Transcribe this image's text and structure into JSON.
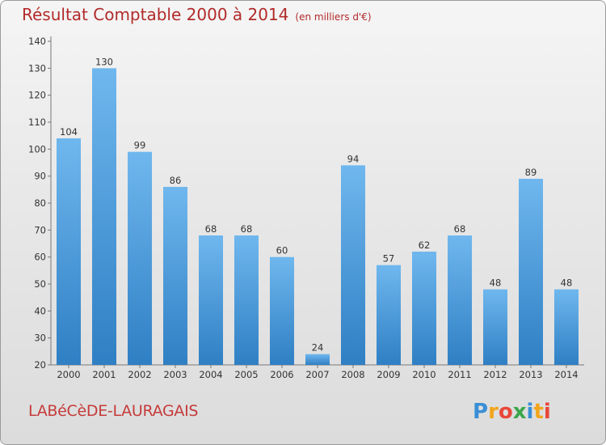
{
  "header": {
    "title": "Résultat Comptable 2000 à 2014",
    "subtitle": "(en milliers d'€)"
  },
  "footer": {
    "commune": "LABéCèDE-LAURAGAIS",
    "logo_text": "Proxiti"
  },
  "colors": {
    "bar": "#3f93d7",
    "bar_light": "#6fb7ee",
    "title": "#b22a2a"
  },
  "chart_data": {
    "type": "bar",
    "categories": [
      "2000",
      "2001",
      "2002",
      "2003",
      "2004",
      "2005",
      "2006",
      "2007",
      "2008",
      "2009",
      "2010",
      "2011",
      "2012",
      "2013",
      "2014"
    ],
    "values": [
      104,
      130,
      99,
      86,
      68,
      68,
      60,
      24,
      94,
      57,
      62,
      68,
      48,
      89,
      48
    ],
    "ylim": [
      20,
      140
    ],
    "yticks": [
      20,
      30,
      40,
      50,
      60,
      70,
      80,
      90,
      100,
      110,
      120,
      130,
      140
    ],
    "grid": false,
    "legend": "none"
  }
}
